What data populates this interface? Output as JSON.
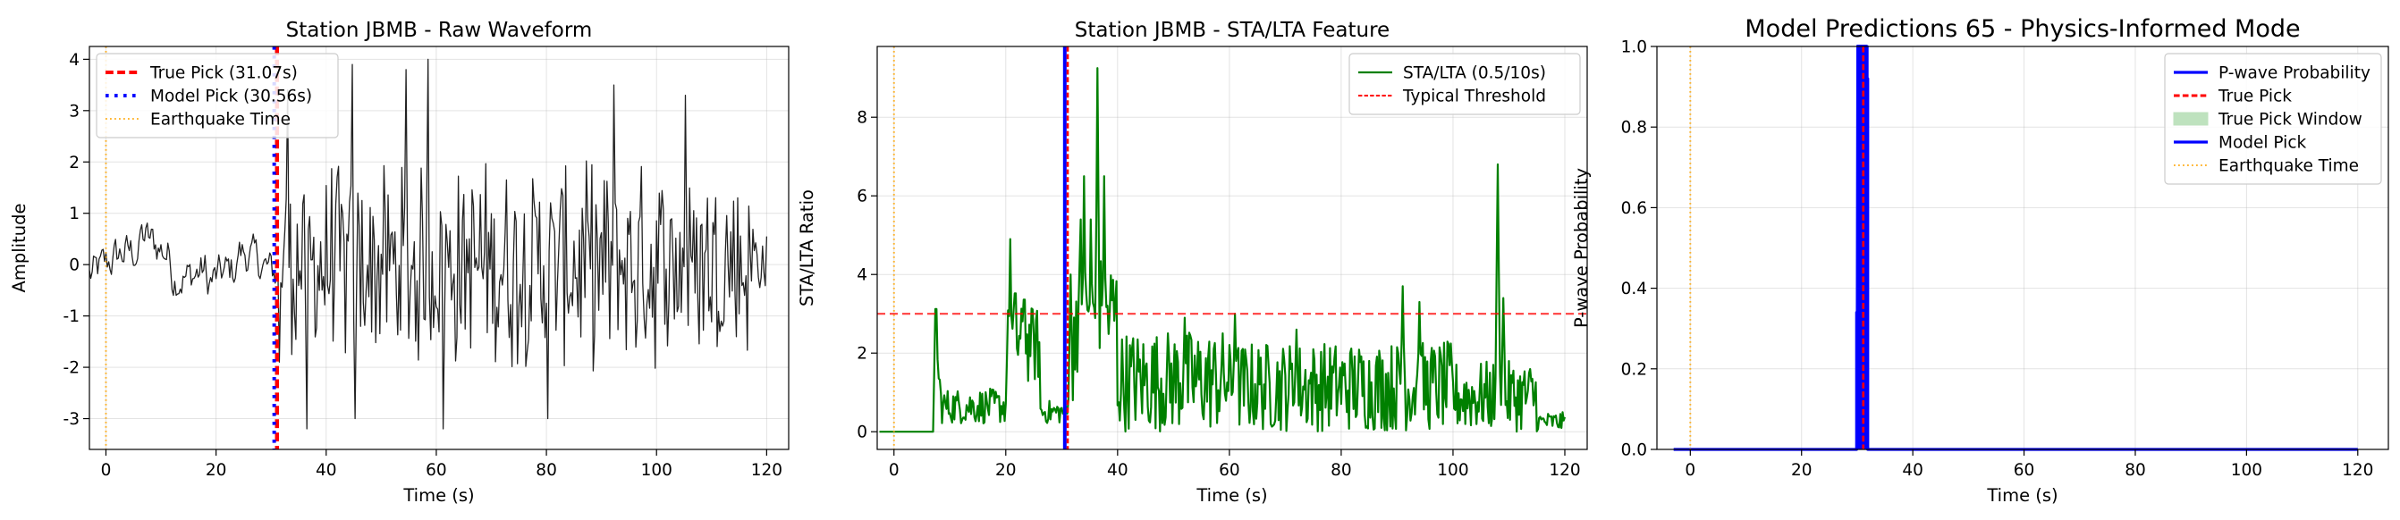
{
  "chart_data": [
    {
      "type": "line",
      "title": "Station JBMB - Raw Waveform",
      "xlabel": "Time (s)",
      "ylabel": "Amplitude",
      "xlim": [
        -3,
        124
      ],
      "ylim": [
        -3.6,
        4.25
      ],
      "xticks": [
        0,
        20,
        40,
        60,
        80,
        100,
        120
      ],
      "yticks": [
        -3,
        -2,
        -1,
        0,
        1,
        2,
        3,
        4
      ],
      "grid": true,
      "legend_position": "top-left",
      "waveform": {
        "color": "#222222",
        "x_start": -3,
        "x_end": 120,
        "noise_end": 31.07,
        "pre_amplitude": 0.35,
        "post_amplitude": 1.6,
        "peak_max": 3.9,
        "peak_min": -3.25
      },
      "lines": [
        {
          "name": "True Pick (31.07s)",
          "x": 31.07,
          "color": "#ff0000",
          "style": "dashed",
          "width": 4.5
        },
        {
          "name": "Model Pick (30.56s)",
          "x": 30.56,
          "color": "#0000ff",
          "style": "dotted",
          "width": 4.0
        },
        {
          "name": "Earthquake Time",
          "x": 0,
          "color": "#ffa500",
          "style": "dotted",
          "width": 2.0
        }
      ]
    },
    {
      "type": "line",
      "title": "Station JBMB - STA/LTA Feature",
      "xlabel": "Time (s)",
      "ylabel": "STA/LTA Ratio",
      "xlim": [
        -3,
        124
      ],
      "ylim": [
        -0.45,
        9.8
      ],
      "xticks": [
        0,
        20,
        40,
        60,
        80,
        100,
        120
      ],
      "yticks": [
        0,
        2,
        4,
        6,
        8
      ],
      "grid": true,
      "legend_position": "top-right",
      "stalta": {
        "name": "STA/LTA (0.5/10s)",
        "color": "#008000",
        "flat_end": 7.3,
        "peaks": [
          {
            "x": 7.5,
            "y": 3.9
          },
          {
            "x": 20.8,
            "y": 4.9
          },
          {
            "x": 21.7,
            "y": 4.4
          },
          {
            "x": 23.3,
            "y": 4.2
          },
          {
            "x": 24.5,
            "y": 2.4
          },
          {
            "x": 31.6,
            "y": 4.0
          },
          {
            "x": 33.4,
            "y": 5.4
          },
          {
            "x": 34.0,
            "y": 6.5
          },
          {
            "x": 35.2,
            "y": 5.4
          },
          {
            "x": 36.4,
            "y": 9.25
          },
          {
            "x": 37.6,
            "y": 6.5
          },
          {
            "x": 52.0,
            "y": 2.9
          },
          {
            "x": 61.0,
            "y": 3.0
          },
          {
            "x": 72.0,
            "y": 2.6
          },
          {
            "x": 91.0,
            "y": 3.7
          },
          {
            "x": 94.0,
            "y": 3.3
          },
          {
            "x": 108.0,
            "y": 6.8
          },
          {
            "x": 109.0,
            "y": 3.4
          }
        ]
      },
      "threshold": {
        "name": "Typical Threshold",
        "y": 3.0,
        "color": "#ff0000"
      },
      "lines": [
        {
          "name": "Model Pick",
          "x": 30.56,
          "color": "#0000ff",
          "style": "solid",
          "width": 4.0
        },
        {
          "name": "True Pick",
          "x": 31.07,
          "color": "#ff0000",
          "style": "dashed",
          "width": 2.6
        },
        {
          "name": "Earthquake Time",
          "x": 0,
          "color": "#ffa500",
          "style": "dotted",
          "width": 2.0
        }
      ]
    },
    {
      "type": "line",
      "title": "Model Predictions 65 - Physics-Informed Mode",
      "xlabel": "Time (s)",
      "ylabel": "P-wave Probability",
      "xlim": [
        -6,
        125.5
      ],
      "ylim": [
        0,
        1
      ],
      "xticks": [
        0,
        20,
        40,
        60,
        80,
        100,
        120
      ],
      "yticks": [
        0.0,
        0.2,
        0.4,
        0.6,
        0.8,
        1.0
      ],
      "grid": true,
      "legend_position": "top-right",
      "probability": {
        "name": "P-wave Probability",
        "color": "#0000ff",
        "x_start": -3,
        "x_end": 120,
        "spike_start": 29.9,
        "spike_end": 31.8,
        "tail_x": 31.9,
        "tail_y": 0.92
      },
      "true_pick_window": {
        "name": "True Pick Window",
        "x0": 30.8,
        "x1": 31.4,
        "color": "#2ca02c"
      },
      "lines": [
        {
          "name": "True Pick",
          "x": 31.07,
          "color": "#ff0000",
          "style": "dashed",
          "width": 3.0
        },
        {
          "name": "Model Pick",
          "x": 30.56,
          "color": "#0000ff",
          "style": "solid",
          "width": 4.0
        },
        {
          "name": "Earthquake Time",
          "x": 0,
          "color": "#ffa500",
          "style": "dotted",
          "width": 2.0
        }
      ],
      "legend_entries": [
        "P-wave Probability",
        "True Pick",
        "True Pick Window",
        "Model Pick",
        "Earthquake Time"
      ]
    }
  ]
}
